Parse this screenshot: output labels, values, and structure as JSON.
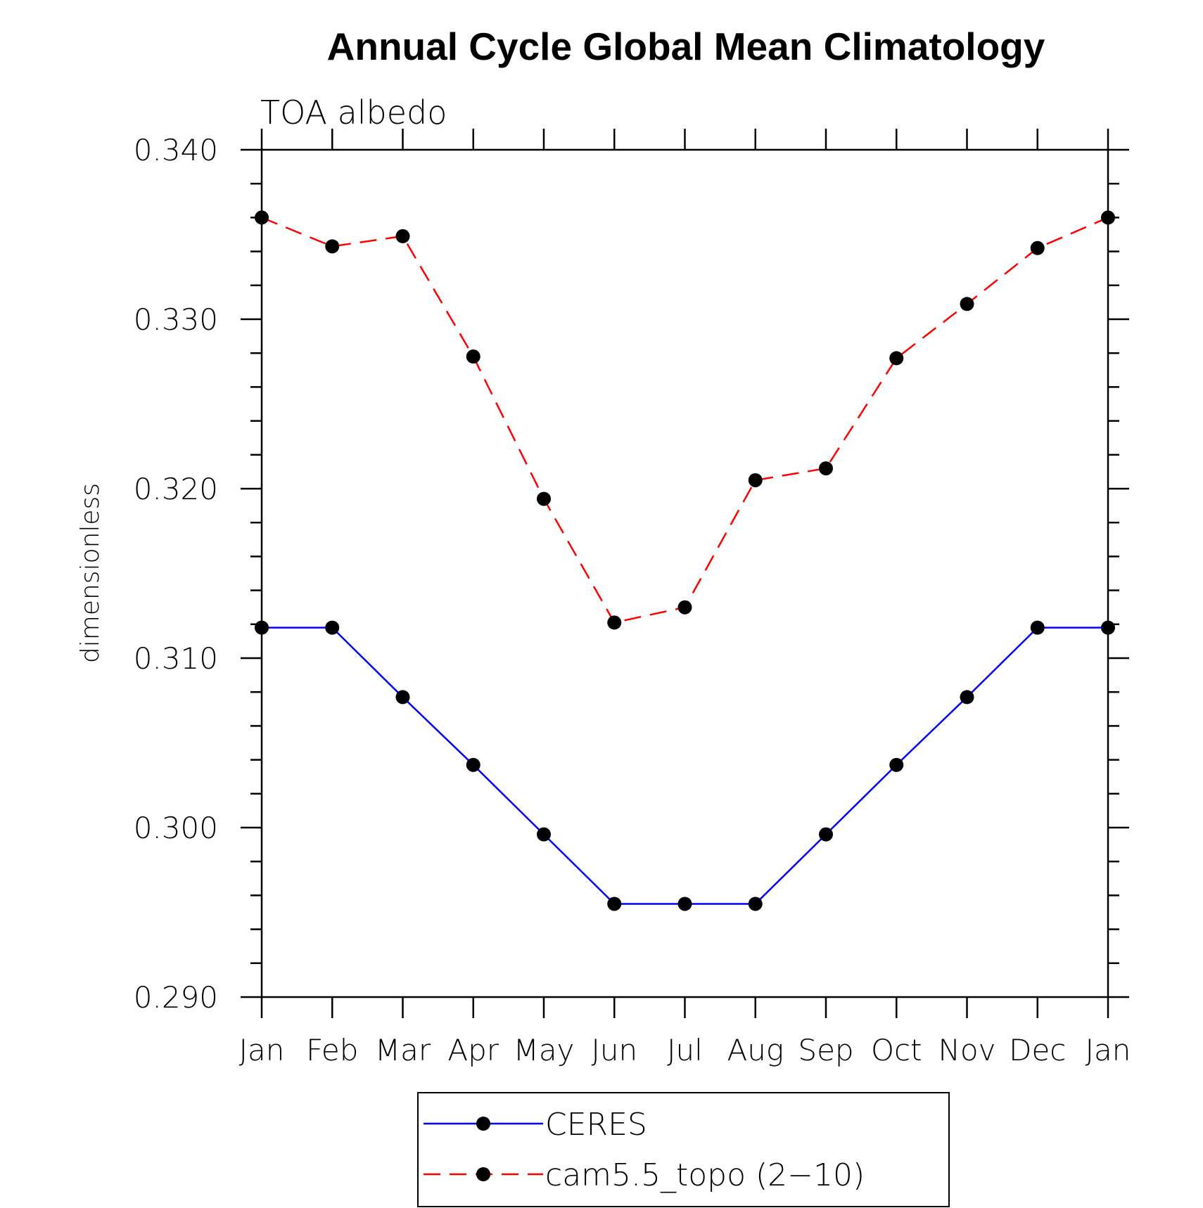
{
  "chart_data": {
    "type": "line",
    "title": "Annual Cycle Global Mean Climatology",
    "subtitle": "TOA albedo",
    "xlabel": "",
    "ylabel": "dimensionless",
    "categories": [
      "Jan",
      "Feb",
      "Mar",
      "Apr",
      "May",
      "Jun",
      "Jul",
      "Aug",
      "Sep",
      "Oct",
      "Nov",
      "Dec",
      "Jan"
    ],
    "ylim": [
      0.29,
      0.34
    ],
    "yticks": [
      "0.340",
      "0.330",
      "0.320",
      "0.310",
      "0.300",
      "0.290"
    ],
    "grid": false,
    "legend_position": "bottom",
    "series": [
      {
        "name": "CERES",
        "color": "#0000ff",
        "style": "solid",
        "marker": "filled-circle",
        "values": [
          0.3118,
          0.3118,
          0.3077,
          0.3037,
          0.2996,
          0.2955,
          0.2955,
          0.2955,
          0.2996,
          0.3037,
          0.3077,
          0.3118,
          0.3118
        ]
      },
      {
        "name": "cam5.5_topo (2−10)",
        "color": "#ff0000",
        "style": "dashed",
        "marker": "filled-circle",
        "values": [
          0.336,
          0.3343,
          0.3349,
          0.3278,
          0.3194,
          0.3121,
          0.313,
          0.3205,
          0.3212,
          0.3277,
          0.3309,
          0.3342,
          0.336
        ]
      }
    ]
  }
}
